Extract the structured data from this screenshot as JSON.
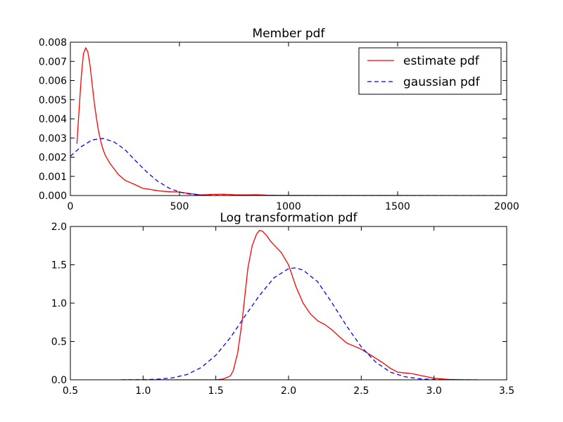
{
  "chart_data": [
    {
      "type": "line",
      "title": "Member pdf",
      "xlabel": "",
      "ylabel": "",
      "xlim": [
        0,
        2000
      ],
      "ylim": [
        0,
        0.008
      ],
      "xticks": [
        0,
        500,
        1000,
        1500,
        2000
      ],
      "xtick_labels": [
        "0",
        "500",
        "1000",
        "1500",
        "2000"
      ],
      "yticks": [
        0,
        0.001,
        0.002,
        0.003,
        0.004,
        0.005,
        0.006,
        0.007,
        0.008
      ],
      "ytick_labels": [
        "0.000",
        "0.001",
        "0.002",
        "0.003",
        "0.004",
        "0.005",
        "0.006",
        "0.007",
        "0.008"
      ],
      "grid": false,
      "legend": {
        "placement": "upper right",
        "entries": [
          "estimate pdf",
          "gaussian pdf"
        ]
      },
      "series": [
        {
          "name": "estimate pdf",
          "color": "#ff0000",
          "style": "solid",
          "x": [
            30,
            40,
            50,
            60,
            70,
            80,
            90,
            100,
            110,
            120,
            130,
            140,
            150,
            160,
            170,
            180,
            200,
            220,
            250,
            280,
            300,
            330,
            360,
            400,
            450,
            500,
            550,
            600,
            650,
            700,
            750,
            800,
            850,
            900,
            1000,
            1200,
            1500,
            2000
          ],
          "y": [
            0.0027,
            0.0045,
            0.0062,
            0.0074,
            0.0077,
            0.0075,
            0.0068,
            0.0058,
            0.0048,
            0.004,
            0.0033,
            0.0028,
            0.0024,
            0.0021,
            0.0019,
            0.0017,
            0.0014,
            0.0011,
            0.0008,
            0.00065,
            0.00055,
            0.00038,
            0.00033,
            0.00025,
            0.0002,
            0.00018,
            0.0001,
            3e-05,
            6e-05,
            7e-05,
            4e-05,
            3e-05,
            4e-05,
            2e-05,
            1e-05,
            5e-06,
            2e-06,
            0.0
          ]
        },
        {
          "name": "gaussian pdf",
          "color": "#0000ff",
          "style": "dashed",
          "x": [
            0,
            50,
            100,
            150,
            200,
            250,
            300,
            350,
            400,
            450,
            500,
            550,
            600,
            650,
            700,
            800,
            1000,
            1500,
            2000
          ],
          "y": [
            0.00205,
            0.00255,
            0.0029,
            0.00298,
            0.0028,
            0.0024,
            0.0018,
            0.00123,
            0.00075,
            0.0004,
            0.00018,
            7e-05,
            2.5e-05,
            8e-06,
            2e-06,
            0.0,
            0.0,
            0.0,
            0.0
          ]
        }
      ]
    },
    {
      "type": "line",
      "title": "Log transformation pdf",
      "xlabel": "",
      "ylabel": "",
      "xlim": [
        0.5,
        3.5
      ],
      "ylim": [
        0,
        2.0
      ],
      "xticks": [
        0.5,
        1.0,
        1.5,
        2.0,
        2.5,
        3.0,
        3.5
      ],
      "xtick_labels": [
        "0.5",
        "1.0",
        "1.5",
        "2.0",
        "2.5",
        "3.0",
        "3.5"
      ],
      "yticks": [
        0,
        0.5,
        1.0,
        1.5,
        2.0
      ],
      "ytick_labels": [
        "0.0",
        "0.5",
        "1.0",
        "1.5",
        "2.0"
      ],
      "grid": false,
      "series": [
        {
          "name": "estimate pdf",
          "color": "#ff0000",
          "style": "solid",
          "x": [
            0.85,
            1.2,
            1.5,
            1.55,
            1.6,
            1.62,
            1.65,
            1.68,
            1.7,
            1.72,
            1.75,
            1.78,
            1.8,
            1.82,
            1.85,
            1.88,
            1.9,
            1.95,
            2.0,
            2.05,
            2.1,
            2.15,
            2.2,
            2.25,
            2.3,
            2.35,
            2.4,
            2.45,
            2.5,
            2.55,
            2.6,
            2.65,
            2.7,
            2.75,
            2.8,
            2.85,
            2.9,
            2.95,
            3.0,
            3.1,
            3.2,
            3.3
          ],
          "y": [
            0.0,
            0.0,
            0.0,
            0.01,
            0.05,
            0.12,
            0.35,
            0.75,
            1.1,
            1.45,
            1.75,
            1.9,
            1.95,
            1.94,
            1.88,
            1.8,
            1.76,
            1.66,
            1.5,
            1.22,
            1.0,
            0.86,
            0.77,
            0.72,
            0.65,
            0.56,
            0.48,
            0.44,
            0.4,
            0.34,
            0.28,
            0.22,
            0.15,
            0.1,
            0.09,
            0.08,
            0.06,
            0.04,
            0.02,
            0.005,
            0.001,
            0.0
          ]
        },
        {
          "name": "gaussian pdf",
          "color": "#0000ff",
          "style": "dashed",
          "x": [
            0.85,
            1.0,
            1.1,
            1.2,
            1.3,
            1.4,
            1.5,
            1.6,
            1.7,
            1.8,
            1.9,
            2.0,
            2.05,
            2.1,
            2.2,
            2.3,
            2.4,
            2.5,
            2.6,
            2.7,
            2.8,
            2.9,
            3.0,
            3.1,
            3.2,
            3.3
          ],
          "y": [
            0.0,
            0.002,
            0.008,
            0.025,
            0.068,
            0.16,
            0.32,
            0.55,
            0.83,
            1.1,
            1.33,
            1.45,
            1.46,
            1.43,
            1.28,
            1.0,
            0.7,
            0.43,
            0.23,
            0.1,
            0.04,
            0.013,
            0.003,
            0.0008,
            0.0002,
            0.0
          ]
        }
      ]
    }
  ]
}
